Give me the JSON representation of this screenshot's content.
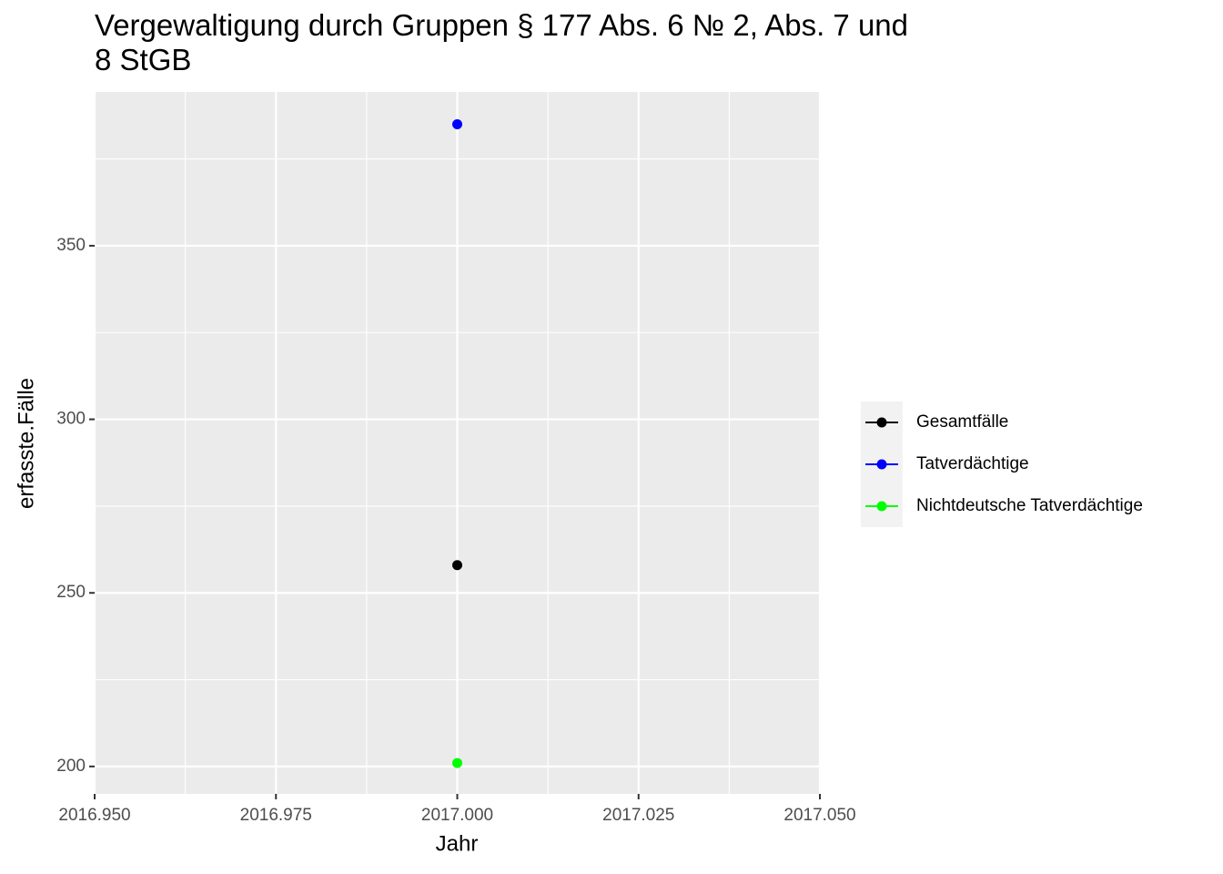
{
  "chart_data": {
    "type": "line",
    "title": "Vergewaltigung durch Gruppen § 177 Abs. 6 № 2, Abs. 7 und\n8 StGB",
    "x_label": "Jahr",
    "y_label": "erfasste.Fälle",
    "x": [
      2017
    ],
    "series": [
      {
        "name": "Gesamtfälle",
        "color": "#000000",
        "values": [
          258
        ]
      },
      {
        "name": "Tatverdächtige",
        "color": "#0000ff",
        "values": [
          385
        ]
      },
      {
        "name": "Nichtdeutsche Tatverdächtige",
        "color": "#00ff00",
        "values": [
          201
        ]
      }
    ],
    "xlim": [
      2016.95,
      2017.05
    ],
    "xticks": [
      {
        "value": 2016.95,
        "label": "2016.950"
      },
      {
        "value": 2016.975,
        "label": "2016.975"
      },
      {
        "value": 2017,
        "label": "2017.000"
      },
      {
        "value": 2017.025,
        "label": "2017.025"
      },
      {
        "value": 2017.05,
        "label": "2017.050"
      }
    ],
    "ylim": [
      192.1,
      394.3
    ],
    "yticks": [
      200,
      250,
      300,
      350
    ],
    "grid": true,
    "legend": "right"
  }
}
